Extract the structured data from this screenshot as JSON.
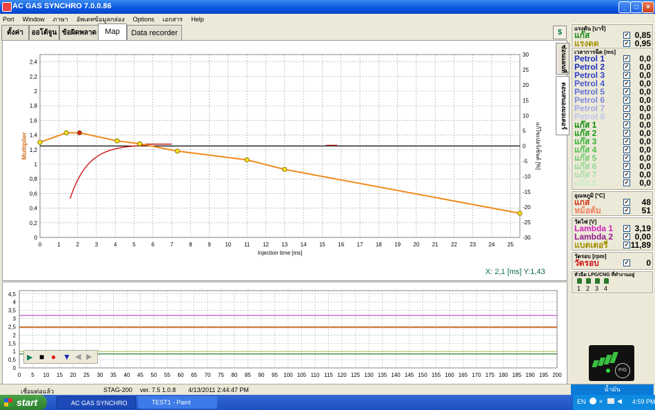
{
  "window": {
    "title": "AC GAS SYNCHRO  7.0.0.86"
  },
  "menu": [
    "Port",
    "Window",
    "ภาษา",
    "อัพเดทข้อมูลกล่อง",
    "Options",
    "เอกสาร",
    "Help"
  ],
  "tabs": [
    "ตั้งค่า",
    "ออโต้จูน",
    "ข้อผิดพลาด",
    "Map",
    "Data recorder"
  ],
  "vertical_tabs": [
    "ซ่อนแผนที่",
    "ตอบสนองมอเตอร์"
  ],
  "map_chart": {
    "type": "line",
    "xlabel": "Injection time [ms]",
    "ylabel": "Multiplier",
    "y2label": "แก้ไขเปอร์เซ็นต์ [%]",
    "xlim": [
      0,
      25.5
    ],
    "ylim": [
      0,
      2.5
    ],
    "y2lim": [
      -30,
      30
    ],
    "xticks": [
      0,
      1,
      2,
      3,
      4,
      5,
      6,
      7,
      8,
      9,
      10,
      11,
      12,
      13,
      14,
      15,
      16,
      17,
      18,
      19,
      20,
      21,
      22,
      23,
      24,
      25
    ],
    "yticks": [
      "0",
      "0,2",
      "0,4",
      "0,6",
      "0,8",
      "1",
      "1,2",
      "1,4",
      "1,6",
      "1,8",
      "2",
      "2,2",
      "2,4"
    ],
    "y2ticks": [
      "-30",
      "-25",
      "-20",
      "-15",
      "-10",
      "-5",
      "0",
      "5",
      "10",
      "15",
      "20",
      "25",
      "30"
    ],
    "multiplier_points": [
      {
        "x": 0.0,
        "y": 1.3
      },
      {
        "x": 1.4,
        "y": 1.43
      },
      {
        "x": 2.1,
        "y": 1.43
      },
      {
        "x": 4.1,
        "y": 1.32
      },
      {
        "x": 5.3,
        "y": 1.28
      },
      {
        "x": 7.3,
        "y": 1.18
      },
      {
        "x": 11.0,
        "y": 1.06
      },
      {
        "x": 13.0,
        "y": 0.93
      },
      {
        "x": 25.5,
        "y": 0.33
      }
    ],
    "selected_point_index": 2,
    "readout": "X:  2,1 [ms]  Y:1,43"
  },
  "recorder_chart": {
    "yticks": [
      "0",
      "0,5",
      "1",
      "1,5",
      "2",
      "2,5",
      "3",
      "3,5",
      "4",
      "4,5"
    ],
    "xticks": [
      "0",
      "5",
      "10",
      "15",
      "20",
      "25",
      "30",
      "35",
      "40",
      "45",
      "50",
      "55",
      "60",
      "65",
      "70",
      "75",
      "80",
      "85",
      "90",
      "95",
      "100",
      "105",
      "110",
      "115",
      "120",
      "125",
      "130",
      "135",
      "140",
      "145",
      "150",
      "155",
      "160",
      "165",
      "170",
      "175",
      "180",
      "185",
      "190",
      "195",
      "200"
    ],
    "ylim": [
      0,
      4.7
    ],
    "xlim": [
      0,
      200
    ],
    "lines": [
      {
        "y": 3.19,
        "color": "#c050d0"
      },
      {
        "y": 2.5,
        "color": "#b87040"
      },
      {
        "y": 2.45,
        "color": "#e08040"
      },
      {
        "y": 1.0,
        "color": "#a8c060"
      },
      {
        "y": 0.85,
        "color": "#208020"
      }
    ]
  },
  "right_panel": {
    "pressure": {
      "title": "แรงดัน [บาร์]",
      "rows": [
        {
          "name": "แก๊ส",
          "color": "#1a8a1a",
          "value": "0,85"
        },
        {
          "name": "แรงดด",
          "color": "#a09000",
          "value": "0,95"
        }
      ]
    },
    "injection": {
      "title": "เวลาการฉีด [ms]",
      "rows": [
        {
          "name": "Petrol 1",
          "color": "#1c2cc0",
          "value": "0,0"
        },
        {
          "name": "Petrol 2",
          "color": "#1c2cc0",
          "value": "0,0"
        },
        {
          "name": "Petrol 3",
          "color": "#3040c8",
          "value": "0,0"
        },
        {
          "name": "Petrol 4",
          "color": "#4858d0",
          "value": "0,0"
        },
        {
          "name": "Petrol 5",
          "color": "#6070d8",
          "value": "0,0"
        },
        {
          "name": "Petrol 6",
          "color": "#8088e0",
          "value": "0,0"
        },
        {
          "name": "Petrol 7",
          "color": "#a0a8e8",
          "value": "0,0"
        },
        {
          "name": "Petrol 8",
          "color": "#c0c4f0",
          "value": "0,0"
        },
        {
          "name": "แก๊ส 1",
          "color": "#0a8a0a",
          "value": "0,0"
        },
        {
          "name": "แก๊ส 2",
          "color": "#189a18",
          "value": "0,0"
        },
        {
          "name": "แก๊ส 3",
          "color": "#30b030",
          "value": "0,0"
        },
        {
          "name": "แก๊ส 4",
          "color": "#50c050",
          "value": "0,0"
        },
        {
          "name": "แก๊ส 5",
          "color": "#70cc70",
          "value": "0,0"
        },
        {
          "name": "แก๊ส 6",
          "color": "#90d890",
          "value": "0,0"
        },
        {
          "name": "แก๊ส 7",
          "color": "#a8e0a8",
          "value": "0,0"
        },
        {
          "name": "แก๊ส 8",
          "color": "#c8ecc8",
          "value": "0,0"
        }
      ]
    },
    "temperature": {
      "title": "อุณหภูมิ [ºC]",
      "rows": [
        {
          "name": "แกส",
          "color": "#d03010",
          "value": "48"
        },
        {
          "name": "หม้อต้ม",
          "color": "#f08060",
          "value": "51"
        }
      ]
    },
    "voltage": {
      "title": "วัดไฟ [V]",
      "rows": [
        {
          "name": "Lambda 1",
          "color": "#d020c0",
          "value": "3,19"
        },
        {
          "name": "Lambda 2",
          "color": "#901890",
          "value": "0,00"
        },
        {
          "name": "แบตเตอรี่",
          "color": "#a09000",
          "value": "11,89"
        }
      ]
    },
    "rpm": {
      "title": "วัดรอบ [rpm]",
      "rows": [
        {
          "name": "วัดรอบ",
          "color": "#d01010",
          "value": "0"
        }
      ]
    },
    "lpg_injectors": {
      "title": "หัวฉีด LPG/CNG ที่ทำงานอยู่",
      "labels": [
        "1",
        "2",
        "3",
        "4"
      ]
    },
    "fuel_label": "น้ำมัน",
    "switch_label": "P/G"
  },
  "status": {
    "connection": "เชื่อมต่อแล้ว",
    "device": "STAG-200",
    "version": "ver. 7.5  1.0.8",
    "datetime": "4/13/2011 2:44:47 PM"
  },
  "taskbar": {
    "start": "start",
    "tasks": [
      "AC GAS SYNCHRO",
      "TEST1 - Paint"
    ],
    "lang": "EN",
    "clock": "4:59 PM"
  }
}
